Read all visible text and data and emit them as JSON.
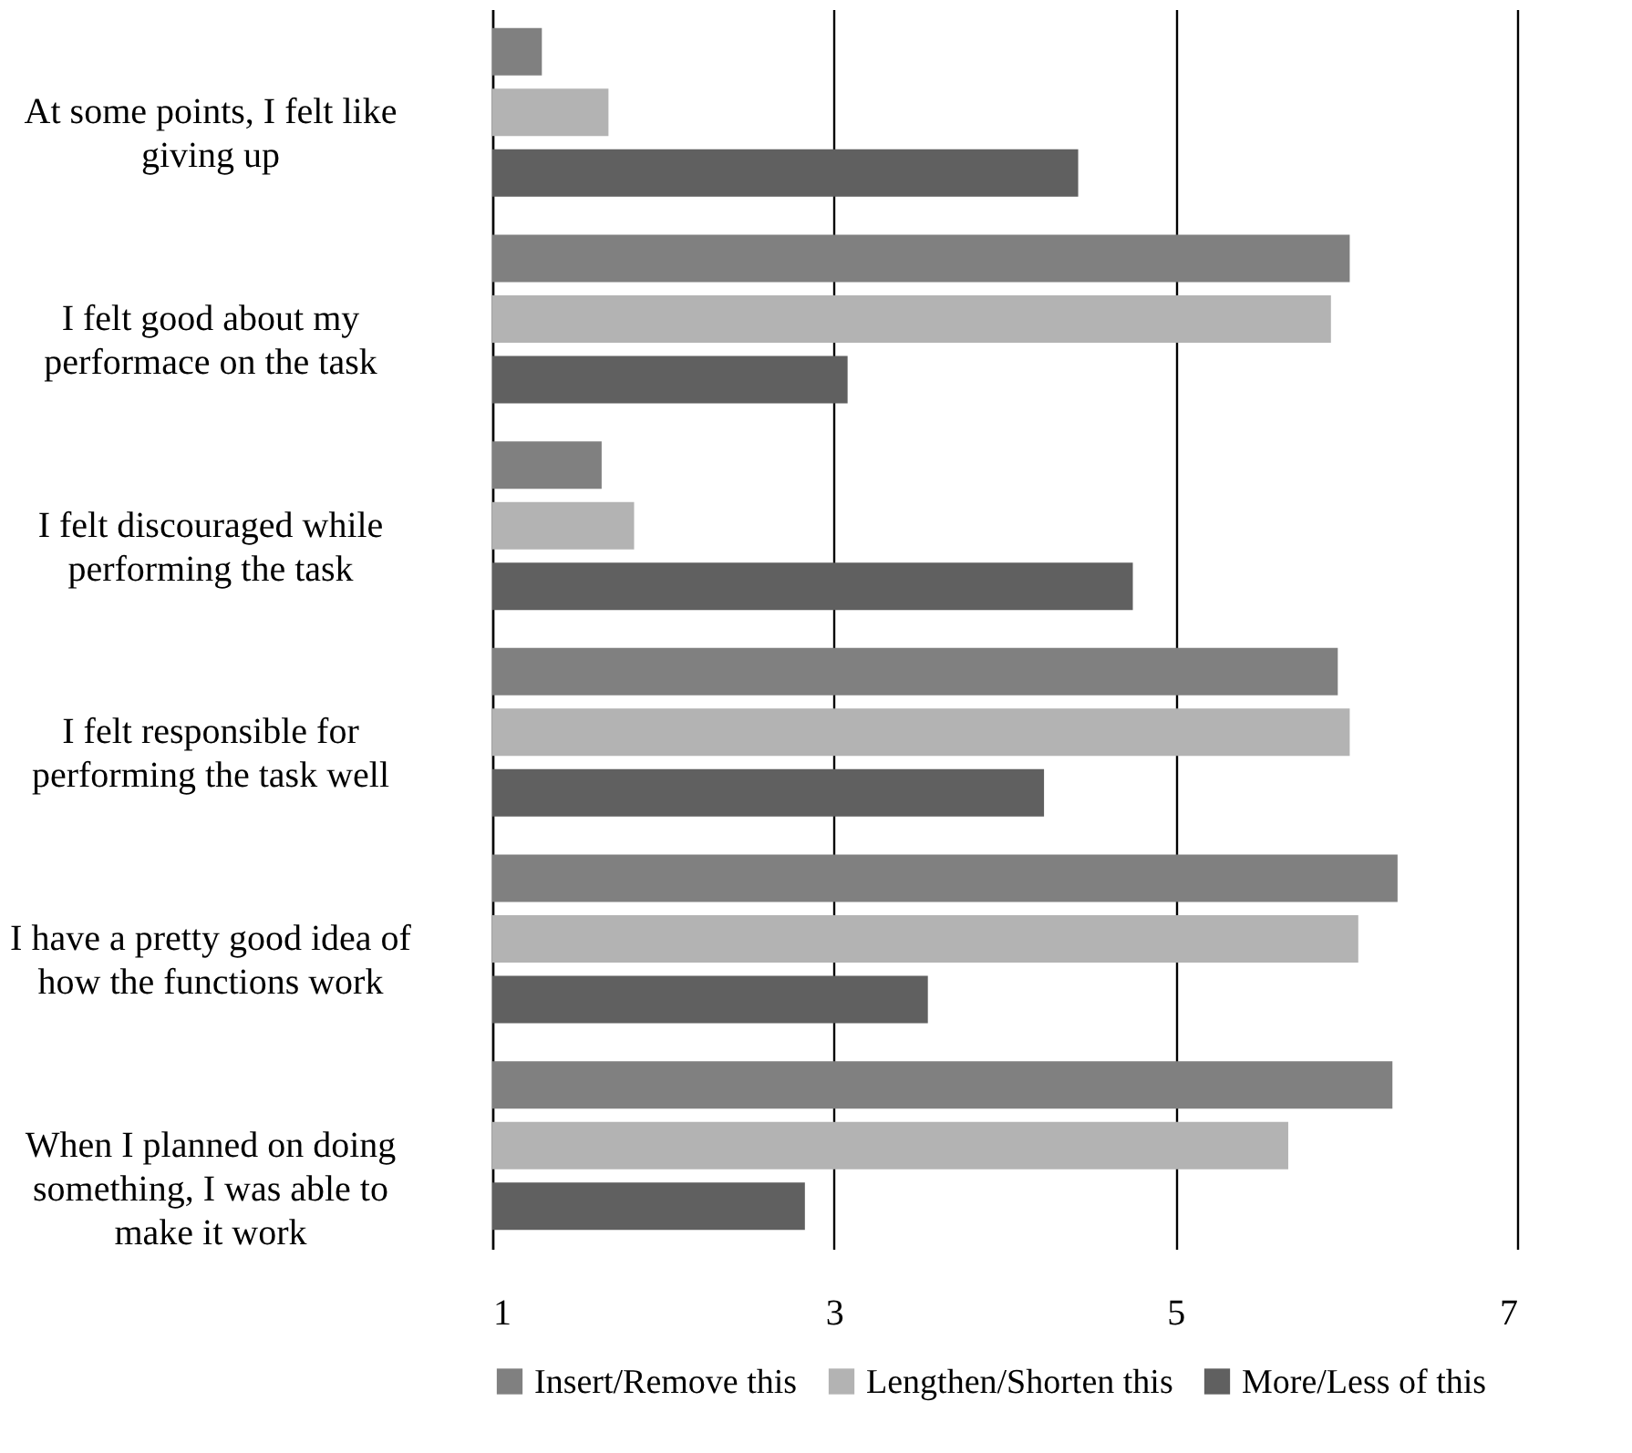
{
  "chart_data": {
    "type": "bar",
    "orientation": "horizontal",
    "categories": [
      "At some points, I felt like giving up",
      "I felt good about my performace on the task",
      "I felt discouraged while performing the task",
      "I felt responsible for performing the task well",
      "I have a pretty good idea of how the functions work",
      "When I planned on doing something, I was able to make it work"
    ],
    "series": [
      {
        "name": "Insert/Remove this",
        "color": "#808080",
        "values": [
          1.29,
          6.02,
          1.64,
          5.95,
          6.3,
          6.27
        ]
      },
      {
        "name": "Lengthen/Shorten this",
        "color": "#b3b3b3",
        "values": [
          1.68,
          5.91,
          1.83,
          6.02,
          6.07,
          5.66
        ]
      },
      {
        "name": "More/Less of this",
        "color": "#606060",
        "values": [
          4.43,
          3.08,
          4.75,
          4.23,
          3.55,
          2.83
        ]
      }
    ],
    "xlim": [
      1,
      7
    ],
    "xticks": [
      1,
      3,
      5,
      7
    ],
    "grid": "x",
    "legend": "bottom"
  }
}
